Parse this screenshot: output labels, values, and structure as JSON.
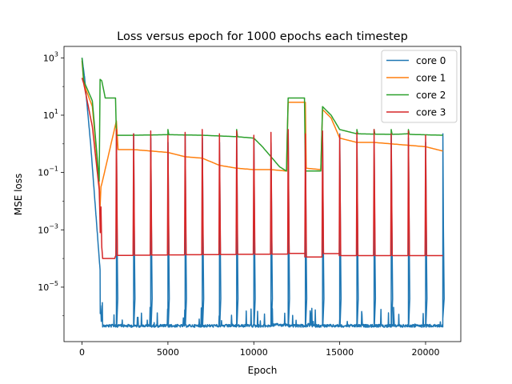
{
  "chart_data": {
    "type": "line",
    "title": "Loss versus epoch for 1000 epochs each timestep",
    "xlabel": "Epoch",
    "ylabel": "MSE loss",
    "xlim": [
      -1050,
      22050
    ],
    "ylim_log10": [
      -6.9,
      3.4
    ],
    "yscale": "log",
    "xticks": [
      0,
      5000,
      10000,
      15000,
      20000
    ],
    "xtick_labels": [
      "0",
      "5000",
      "10000",
      "15000",
      "20000"
    ],
    "yticks_exp": [
      3,
      1,
      -1,
      -3,
      -5
    ],
    "ytick_base": "10",
    "legend_position": "top-right",
    "grid": false,
    "series": [
      {
        "name": "core 0",
        "color": "#1f77b4"
      },
      {
        "name": "core 1",
        "color": "#ff7f0e"
      },
      {
        "name": "core 2",
        "color": "#2ca02c"
      },
      {
        "name": "core 3",
        "color": "#d62728"
      }
    ]
  }
}
